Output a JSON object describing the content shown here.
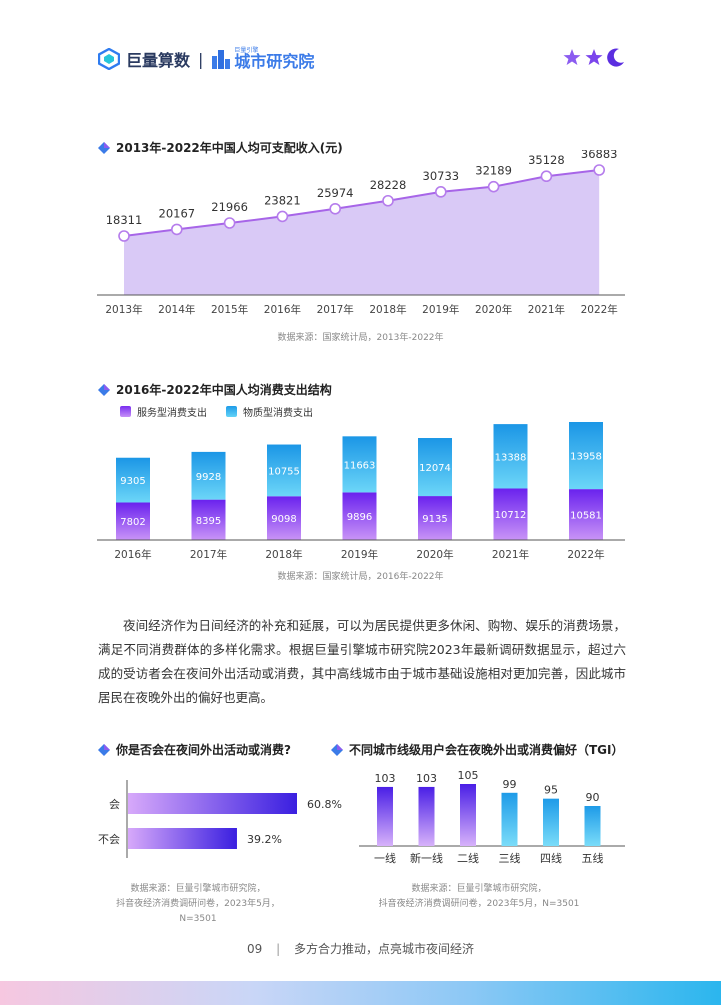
{
  "header": {
    "brand_name": "巨量算数",
    "separator": "|",
    "brand_sub_top": "巨量引擎",
    "brand_sub": "城市研究院"
  },
  "section1": {
    "title": "2013年-2022年中国人均可支配收入(元)",
    "source": "数据来源：国家统计局，2013年-2022年"
  },
  "section2": {
    "title": "2016年-2022年中国人均消费支出结构",
    "legend_service": "服务型消费支出",
    "legend_material": "物质型消费支出",
    "source": "数据来源：国家统计局，2016年-2022年"
  },
  "paragraph": "夜间经济作为日间经济的补充和延展，可以为居民提供更多休闲、购物、娱乐的消费场景，满足不同消费群体的多样化需求。根据巨量引擎城市研究院2023年最新调研数据显示，超过六成的受访者会在夜间外出活动或消费，其中高线城市由于城市基础设施相对更加完善，因此城市居民在夜晚外出的偏好也更高。",
  "section3": {
    "title": "你是否会在夜间外出活动或消费?",
    "source_line1": "数据来源：巨量引擎城市研究院，",
    "source_line2": "抖音夜经济消费调研问卷，2023年5月，N=3501"
  },
  "section4": {
    "title": "不同城市线级用户会在夜晚外出或消费偏好（TGI）",
    "source_line1": "数据来源：巨量引擎城市研究院，",
    "source_line2": "抖音夜经济消费调研问卷，2023年5月，N=3501"
  },
  "footer": {
    "page_number": "09",
    "separator": "|",
    "text": "多方合力推动，点亮城市夜间经济"
  },
  "colors": {
    "line": "#a765e8",
    "area": "#d9c9f6",
    "service_top": "#7a2df0",
    "service_bottom": "#c790f7",
    "material_top": "#1e9be8",
    "material_bottom": "#63d3f7"
  },
  "chart_data": [
    {
      "type": "area",
      "categories": [
        "2013年",
        "2014年",
        "2015年",
        "2016年",
        "2017年",
        "2018年",
        "2019年",
        "2020年",
        "2021年",
        "2022年"
      ],
      "values": [
        18311,
        20167,
        21966,
        23821,
        25974,
        28228,
        30733,
        32189,
        35128,
        36883
      ]
    },
    {
      "type": "bar",
      "stacked": true,
      "categories": [
        "2016年",
        "2017年",
        "2018年",
        "2019年",
        "2020年",
        "2021年",
        "2022年"
      ],
      "series": [
        {
          "name": "服务型消费支出",
          "values": [
            7802,
            8395,
            9098,
            9896,
            9135,
            10712,
            10581
          ]
        },
        {
          "name": "物质型消费支出",
          "values": [
            9305,
            9928,
            10755,
            11663,
            12074,
            13388,
            13958
          ]
        }
      ]
    },
    {
      "type": "bar",
      "orientation": "horizontal",
      "categories": [
        "会",
        "不会"
      ],
      "values": [
        60.8,
        39.2
      ],
      "value_labels": [
        "60.8%",
        "39.2%"
      ]
    },
    {
      "type": "bar",
      "categories": [
        "一线",
        "新一线",
        "二线",
        "三线",
        "四线",
        "五线"
      ],
      "values": [
        103,
        103,
        105,
        99,
        95,
        90
      ]
    }
  ]
}
